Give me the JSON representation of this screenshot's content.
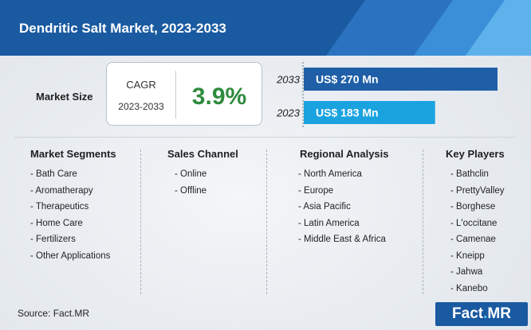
{
  "header": {
    "title": "Dendritic Salt Market, 2023-2033"
  },
  "summary": {
    "market_size_label": "Market Size",
    "cagr_label": "CAGR",
    "cagr_period": "2023-2033",
    "cagr_value": "3.9%"
  },
  "chart_data": {
    "type": "bar",
    "orientation": "horizontal",
    "categories": [
      "2033",
      "2023"
    ],
    "values": [
      270,
      183
    ],
    "value_labels": [
      "US$ 270 Mn",
      "US$ 183 Mn"
    ],
    "unit": "US$ Mn",
    "colors": [
      "#1f5fa7",
      "#1aa3df"
    ],
    "title": "",
    "xlabel": "",
    "ylabel": ""
  },
  "segments": {
    "market_segments": {
      "title": "Market Segments",
      "items": [
        "- Bath Care",
        "- Aromatherapy",
        "- Therapeutics",
        "- Home Care",
        "- Fertilizers",
        "- Other Applications"
      ]
    },
    "sales_channel": {
      "title": "Sales Channel",
      "items": [
        "- Online",
        "- Offline"
      ]
    },
    "regional_analysis": {
      "title": "Regional Analysis",
      "items": [
        "- North America",
        "- Europe",
        "- Asia Pacific",
        "- Latin America",
        "- Middle East & Africa"
      ]
    },
    "key_players": {
      "title": "Key Players",
      "items": [
        "- Bathclin",
        "- PrettyValley",
        "- Borghese",
        "- L'occitane",
        "- Camenae",
        "- Kneipp",
        "- Jahwa",
        "- Kanebo"
      ]
    }
  },
  "footer": {
    "source": "Source: Fact.MR",
    "logo_main": "Fact",
    "logo_dot": ".",
    "logo_suffix": "MR"
  }
}
